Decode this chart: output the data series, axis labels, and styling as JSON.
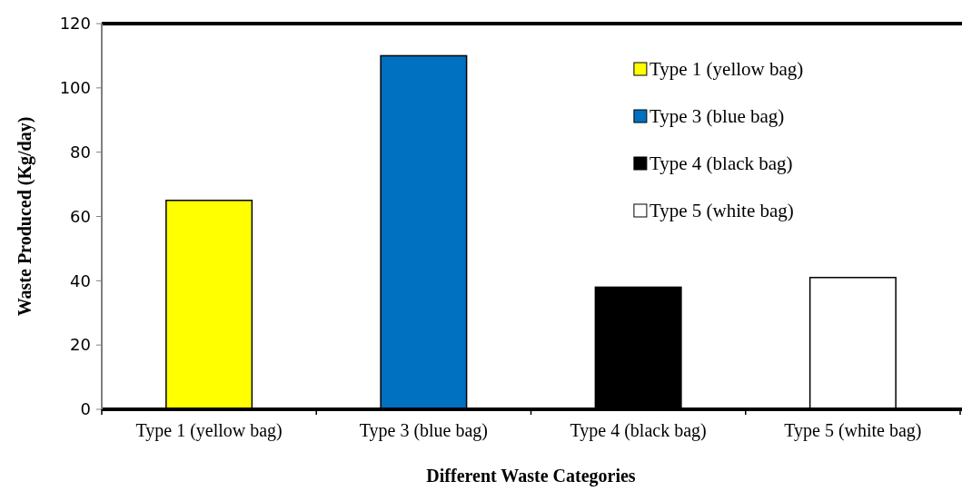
{
  "chart_data": {
    "type": "bar",
    "xlabel": "Different Waste Categories",
    "ylabel": "Waste Produced (Kg/day)",
    "categories": [
      "Type 1 (yellow bag)",
      "Type 3 (blue bag)",
      "Type 4 (black bag)",
      "Type 5 (white bag)"
    ],
    "series": [
      {
        "name": "Type 1 (yellow bag)",
        "color": "#ffff00",
        "values": [
          65,
          null,
          null,
          null
        ]
      },
      {
        "name": "Type 3 (blue bag)",
        "color": "#0070c0",
        "values": [
          null,
          110,
          null,
          null
        ]
      },
      {
        "name": "Type 4 (black bag)",
        "color": "#000000",
        "values": [
          null,
          null,
          38,
          null
        ]
      },
      {
        "name": "Type 5 (white bag)",
        "color": "#ffffff",
        "values": [
          null,
          null,
          null,
          41
        ]
      }
    ],
    "stacked": true,
    "ylim": [
      0,
      120
    ],
    "yticks": [
      0,
      20,
      40,
      60,
      80,
      100,
      120
    ],
    "grid": false,
    "legend": "top right"
  }
}
